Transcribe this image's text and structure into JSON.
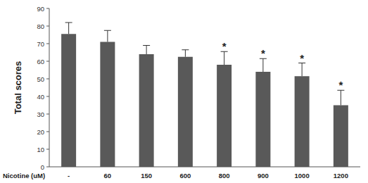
{
  "chart_data": {
    "type": "bar",
    "x_label": "Nicotine (uM)",
    "y_label": "Total scores",
    "categories": [
      "-",
      "60",
      "150",
      "600",
      "800",
      "900",
      "1000",
      "1200"
    ],
    "values": [
      75.5,
      71,
      64,
      62.5,
      58,
      54,
      51.5,
      35
    ],
    "errors": [
      6.5,
      6.5,
      5,
      4,
      7.5,
      7.5,
      7.5,
      8.5
    ],
    "color": "#595959",
    "ylim": [
      0,
      90
    ],
    "yticks": [
      0,
      10,
      20,
      30,
      40,
      50,
      60,
      70,
      80,
      90
    ],
    "grid": false,
    "annotations": [
      {
        "x": "800",
        "text": "*"
      },
      {
        "x": "900",
        "text": "*"
      },
      {
        "x": "1000",
        "text": "*"
      },
      {
        "x": "1200",
        "text": "*"
      }
    ]
  }
}
